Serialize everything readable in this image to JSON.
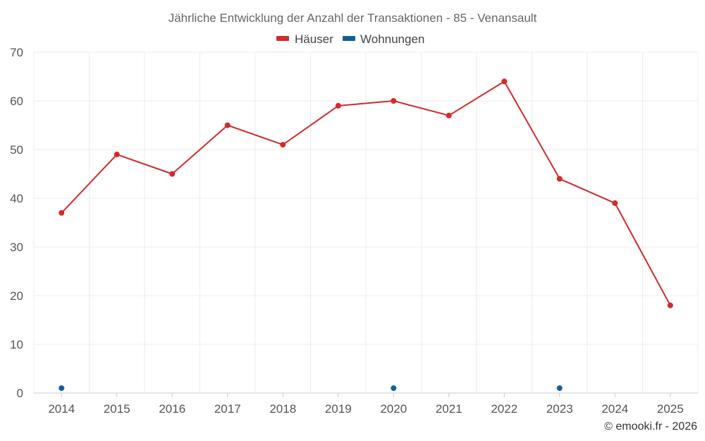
{
  "chart_data": {
    "type": "line",
    "title": "Jährliche Entwicklung der Anzahl der Transaktionen - 85 - Venansault",
    "categories": [
      "2014",
      "2015",
      "2016",
      "2017",
      "2018",
      "2019",
      "2020",
      "2021",
      "2022",
      "2023",
      "2024",
      "2025"
    ],
    "ylim": [
      0,
      70
    ],
    "yticks": [
      0,
      10,
      20,
      30,
      40,
      50,
      60,
      70
    ],
    "grid": true,
    "legend_position": "top-center",
    "series": [
      {
        "name": "Häuser",
        "color": "#d32a2a",
        "values": [
          37,
          49,
          45,
          55,
          51,
          59,
          60,
          57,
          64,
          44,
          39,
          18
        ]
      },
      {
        "name": "Wohnungen",
        "color": "#0f5fa0",
        "values": [
          1,
          null,
          null,
          null,
          null,
          null,
          1,
          null,
          null,
          1,
          null,
          null
        ]
      }
    ]
  },
  "credit": "© emooki.fr - 2026"
}
